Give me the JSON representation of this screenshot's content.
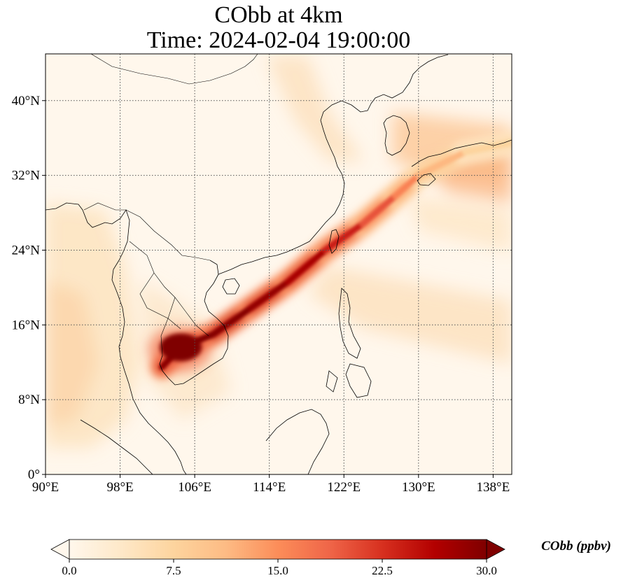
{
  "title_line1": "CObb at 4km",
  "title_line2": "Time: 2024-02-04 19:00:00",
  "chart_data": {
    "type": "heatmap",
    "variable": "CObb",
    "units": "ppbv",
    "colorbar_label": "CObb (ppbv)",
    "colormap": "OrRd",
    "colorbar_extend": "both",
    "vmin": 0.0,
    "vmax": 30.0,
    "colorbar_ticks": [
      "0.0",
      "7.5",
      "15.0",
      "22.5",
      "30.0"
    ],
    "colorbar_tick_values": [
      0,
      7.5,
      15,
      22.5,
      30
    ],
    "x_range": [
      90,
      140
    ],
    "y_range": [
      0,
      45
    ],
    "x_ticks": [
      90,
      98,
      106,
      114,
      122,
      130,
      138
    ],
    "x_tick_labels": [
      "90°E",
      "98°E",
      "106°E",
      "114°E",
      "122°E",
      "130°E",
      "138°E"
    ],
    "y_ticks": [
      0,
      8,
      16,
      24,
      32,
      40
    ],
    "y_tick_labels": [
      "0°",
      "8°N",
      "16°N",
      "24°N",
      "32°N",
      "40°N"
    ],
    "grid": true,
    "plume_path": [
      {
        "lon": 102.5,
        "lat": 11.5,
        "value": 28
      },
      {
        "lon": 104.5,
        "lat": 13.6,
        "value": 30
      },
      {
        "lon": 108.0,
        "lat": 15.0,
        "value": 30
      },
      {
        "lon": 112.0,
        "lat": 17.8,
        "value": 29
      },
      {
        "lon": 116.0,
        "lat": 20.6,
        "value": 28
      },
      {
        "lon": 120.0,
        "lat": 24.0,
        "value": 26
      },
      {
        "lon": 124.0,
        "lat": 26.8,
        "value": 22
      },
      {
        "lon": 127.5,
        "lat": 29.8,
        "value": 18
      },
      {
        "lon": 130.0,
        "lat": 32.0,
        "value": 14
      },
      {
        "lon": 135.0,
        "lat": 34.5,
        "value": 9
      },
      {
        "lon": 140.0,
        "lat": 35.5,
        "value": 6
      }
    ]
  },
  "colors": {
    "background_low": "#fff7ec",
    "cmap_stops": [
      "#fff7ec",
      "#fee8c8",
      "#fdd49e",
      "#fdbb84",
      "#fc8d59",
      "#ef6548",
      "#d7301f",
      "#b30000",
      "#7f0000"
    ],
    "grid": "#555555",
    "coast": "#000000"
  }
}
